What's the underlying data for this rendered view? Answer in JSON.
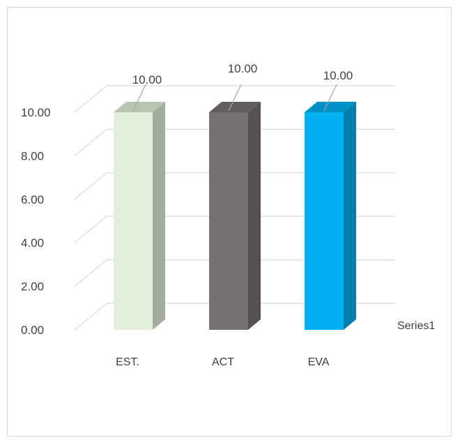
{
  "chart_data": {
    "type": "bar",
    "style": "3d-column",
    "categories": [
      "EST.",
      "ACT",
      "EVA"
    ],
    "series": [
      {
        "name": "Series1",
        "values": [
          10.0,
          10.0,
          10.0
        ]
      }
    ],
    "bar_colors": [
      "#e2efda",
      "#767171",
      "#00b0f0"
    ],
    "ylim": [
      0,
      10
    ],
    "y_ticks": [
      "0.00",
      "2.00",
      "4.00",
      "6.00",
      "8.00",
      "10.00"
    ],
    "data_labels": [
      "10.00",
      "10.00",
      "10.00"
    ],
    "grid": true,
    "legend": "none",
    "title": "",
    "xlabel": "",
    "ylabel": ""
  }
}
